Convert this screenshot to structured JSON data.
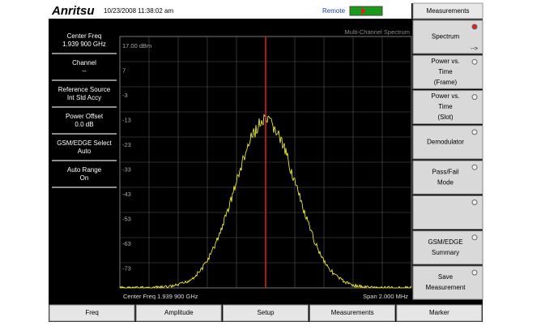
{
  "header": {
    "brand": "Anritsu",
    "datetime": "10/23/2008 11:38:02 am",
    "status": "Remote"
  },
  "left_panel": [
    {
      "label": "Center Freq",
      "value": "1.939 900 GHz"
    },
    {
      "label": "Channel",
      "value": "--"
    },
    {
      "label": "Reference Source",
      "value": "Int Std Accy"
    },
    {
      "label": "Power Offset",
      "value": "0.0 dB"
    },
    {
      "label": "GSM/EDGE Select",
      "value": "Auto"
    },
    {
      "label": "Auto Range",
      "value": "On"
    }
  ],
  "plot": {
    "title": "Multi-Channel Spectrum",
    "y_labels": [
      "17.00 dBm",
      "7",
      "-3",
      "-13",
      "-23",
      "-33",
      "-43",
      "-53",
      "-63",
      "-73"
    ],
    "center": "Center Freq 1.939 900 GHz",
    "span": "Span 2.000 MHz"
  },
  "menu": {
    "title": "Measurements",
    "buttons": [
      {
        "lines": [
          "Spectrum"
        ],
        "arrow": "-->"
      },
      {
        "lines": [
          "Power vs.",
          "Time",
          "(Frame)"
        ]
      },
      {
        "lines": [
          "Power vs.",
          "Time",
          "(Slot)"
        ]
      },
      {
        "lines": [
          "Demodulator"
        ]
      },
      {
        "lines": [
          "Pass/Fail",
          "Mode"
        ]
      },
      {
        "lines": []
      },
      {
        "lines": [
          "GSM/EDGE",
          "Summary"
        ]
      },
      {
        "lines": [
          "Save",
          "Measurement"
        ]
      }
    ]
  },
  "softkeys": [
    "Freq",
    "Amplitude",
    "Setup",
    "Measurements",
    "Marker"
  ]
}
